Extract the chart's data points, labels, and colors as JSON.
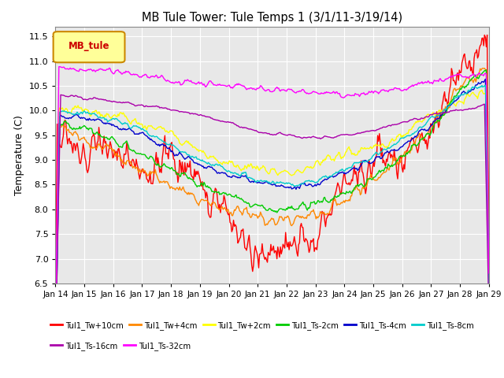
{
  "title": "MB Tule Tower: Tule Temps 1 (3/1/11-3/19/14)",
  "ylabel": "Temperature (C)",
  "ylim": [
    6.5,
    11.7
  ],
  "xlim": [
    0,
    15
  ],
  "xtick_labels": [
    "Jan 14",
    "Jan 15",
    "Jan 16",
    "Jan 17",
    "Jan 18",
    "Jan 19",
    "Jan 20",
    "Jan 21",
    "Jan 22",
    "Jan 23",
    "Jan 24",
    "Jan 25",
    "Jan 26",
    "Jan 27",
    "Jan 28",
    "Jan 29"
  ],
  "bg_color": "#e8e8e8",
  "series_order": [
    "Tul1_Tw+10cm",
    "Tul1_Tw+4cm",
    "Tul1_Tw+2cm",
    "Tul1_Ts-2cm",
    "Tul1_Ts-4cm",
    "Tul1_Ts-8cm",
    "Tul1_Ts-16cm",
    "Tul1_Ts-32cm"
  ],
  "series": {
    "Tul1_Tw+10cm": {
      "color": "#ff0000",
      "lw": 1.0
    },
    "Tul1_Tw+4cm": {
      "color": "#ff8800",
      "lw": 1.0
    },
    "Tul1_Tw+2cm": {
      "color": "#ffff00",
      "lw": 1.0
    },
    "Tul1_Ts-2cm": {
      "color": "#00cc00",
      "lw": 1.0
    },
    "Tul1_Ts-4cm": {
      "color": "#0000cc",
      "lw": 1.0
    },
    "Tul1_Ts-8cm": {
      "color": "#00cccc",
      "lw": 1.0
    },
    "Tul1_Ts-16cm": {
      "color": "#aa00aa",
      "lw": 1.0
    },
    "Tul1_Ts-32cm": {
      "color": "#ff00ff",
      "lw": 1.0
    }
  },
  "legend_box_color": "#ffff99",
  "legend_box_edge": "#cc8800",
  "legend_label": "MB_tule",
  "legend_label_color": "#cc0000",
  "yticks": [
    6.5,
    7.0,
    7.5,
    8.0,
    8.5,
    9.0,
    9.5,
    10.0,
    10.5,
    11.0,
    11.5
  ],
  "n_points": 500
}
